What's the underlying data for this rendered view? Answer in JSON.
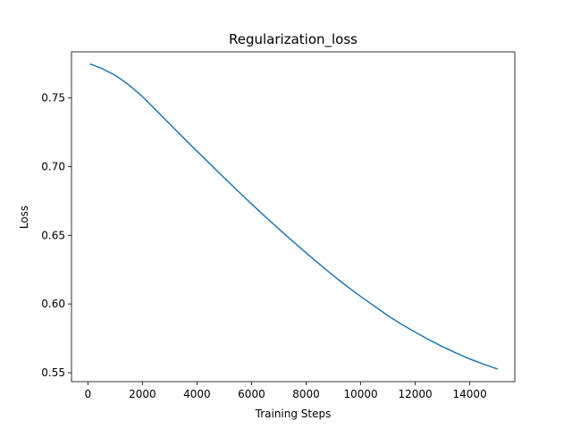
{
  "chart_data": {
    "type": "line",
    "title": "Regularization_loss",
    "xlabel": "Training Steps",
    "ylabel": "Loss",
    "xlim": [
      -600,
      15650
    ],
    "ylim": [
      0.5435,
      0.7835
    ],
    "xticks": [
      0,
      2000,
      4000,
      6000,
      8000,
      10000,
      12000,
      14000
    ],
    "yticks": [
      0.55,
      0.6,
      0.65,
      0.7,
      0.75
    ],
    "ytick_labels": [
      "0.55",
      "0.60",
      "0.65",
      "0.70",
      "0.75"
    ],
    "grid": false,
    "series": [
      {
        "color": "#1f77b4",
        "x": [
          100,
          500,
          1000,
          1500,
          2000,
          2500,
          3000,
          3500,
          4000,
          4500,
          5000,
          5500,
          6000,
          6500,
          7000,
          7500,
          8000,
          8500,
          9000,
          9500,
          10000,
          10500,
          11000,
          11500,
          12000,
          12500,
          13000,
          13500,
          14000,
          14500,
          15000
        ],
        "y": [
          0.7745,
          0.7715,
          0.7665,
          0.7595,
          0.751,
          0.741,
          0.731,
          0.721,
          0.7112,
          0.7015,
          0.6918,
          0.6822,
          0.6728,
          0.6636,
          0.6546,
          0.6458,
          0.6372,
          0.6288,
          0.6206,
          0.6128,
          0.6055,
          0.5985,
          0.5915,
          0.5852,
          0.5795,
          0.574,
          0.569,
          0.5643,
          0.56,
          0.5562,
          0.5528
        ]
      }
    ]
  }
}
